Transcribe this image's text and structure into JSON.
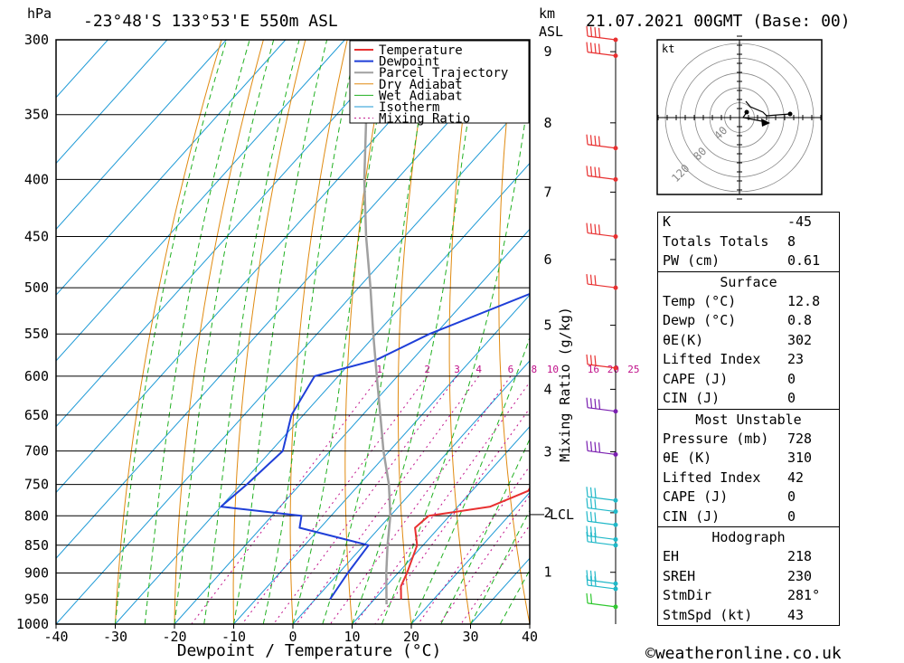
{
  "header": {
    "hpa_label": "hPa",
    "location": "-23°48'S  133°53'E  550m  ASL",
    "km_label": "km",
    "asl_label": "ASL",
    "datetime": "21.07.2021  00GMT  (Base: 00)"
  },
  "footer": {
    "x_axis_title": "Dewpoint / Temperature (°C)",
    "credit": "©weatheronline.co.uk"
  },
  "chart_data": {
    "type": "line",
    "title": "Skew-T log-P sounding",
    "xlabel": "Dewpoint / Temperature (°C)",
    "ylabel": "hPa",
    "y2label": "Mixing Ratio (g/kg)",
    "pressure_ticks": [
      "300",
      "350",
      "400",
      "450",
      "500",
      "550",
      "600",
      "650",
      "700",
      "750",
      "800",
      "850",
      "900",
      "950",
      "1000"
    ],
    "temp_ticks": [
      "-40",
      "-30",
      "-20",
      "-10",
      "0",
      "10",
      "20",
      "30",
      "40"
    ],
    "height_ticks": [
      "1",
      "2",
      "3",
      "4",
      "5",
      "6",
      "7",
      "8",
      "9"
    ],
    "lcl_label": "LCL",
    "mixing_ratio_labels": [
      "1",
      "2",
      "3",
      "4",
      "6",
      "8",
      "10",
      "16",
      "20",
      "25"
    ],
    "legend": [
      "Temperature",
      "Dewpoint",
      "Parcel Trajectory",
      "Dry Adiabat",
      "Wet Adiabat",
      "Isotherm",
      "Mixing Ratio"
    ],
    "colors": {
      "temperature": "#e83030",
      "dewpoint": "#1f3fd8",
      "parcel": "#a0a0a0",
      "dry_adiabat": "#e08a10",
      "wet_adiabat": "#20b020",
      "isotherm": "#1e9ad6",
      "mixing_ratio": "#c0108a"
    },
    "series": [
      {
        "name": "Temperature",
        "points": [
          [
            950,
            14.5
          ],
          [
            925,
            12.5
          ],
          [
            900,
            11.5
          ],
          [
            850,
            9.0
          ],
          [
            820,
            6.0
          ],
          [
            800,
            6.5
          ],
          [
            785,
            15.5
          ],
          [
            760,
            19.5
          ],
          [
            700,
            17.5
          ],
          [
            650,
            16.0
          ],
          [
            610,
            16.0
          ],
          [
            590,
            21.0
          ],
          [
            550,
            20.0
          ],
          [
            500,
            17.0
          ],
          [
            450,
            15.0
          ],
          [
            400,
            10.0
          ],
          [
            380,
            10.0
          ],
          [
            365,
            12.0
          ],
          [
            350,
            10.5
          ],
          [
            300,
            4.0
          ]
        ]
      },
      {
        "name": "Dewpoint",
        "points": [
          [
            950,
            2.5
          ],
          [
            900,
            1.5
          ],
          [
            850,
            0.8
          ],
          [
            820,
            -13.5
          ],
          [
            800,
            -15.0
          ],
          [
            785,
            -30.0
          ],
          [
            750,
            -29.0
          ],
          [
            700,
            -28.0
          ],
          [
            650,
            -32.0
          ],
          [
            600,
            -34.0
          ],
          [
            580,
            -26.0
          ],
          [
            550,
            -21.0
          ],
          [
            500,
            -8.5
          ],
          [
            480,
            -7.0
          ],
          [
            450,
            7.0
          ],
          [
            400,
            0.5
          ],
          [
            380,
            -1.0
          ],
          [
            370,
            -8.5
          ],
          [
            330,
            -10.5
          ],
          [
            300,
            -12.0
          ]
        ]
      },
      {
        "name": "Parcel Trajectory",
        "points": [
          [
            960,
            12.8
          ],
          [
            900,
            8.0
          ],
          [
            850,
            4.0
          ],
          [
            800,
            0.0
          ],
          [
            750,
            -5.0
          ],
          [
            700,
            -11.0
          ],
          [
            650,
            -17.0
          ],
          [
            600,
            -23.5
          ],
          [
            550,
            -30.5
          ],
          [
            500,
            -38.0
          ],
          [
            450,
            -46.5
          ],
          [
            400,
            -55.5
          ],
          [
            350,
            -65.0
          ],
          [
            310,
            -72.0
          ]
        ]
      }
    ]
  },
  "hodograph": {
    "unit_label": "kt",
    "rings": [
      "40",
      "80",
      "120"
    ]
  },
  "indices": {
    "top": [
      {
        "label": "K",
        "value": "-45"
      },
      {
        "label": "Totals Totals",
        "value": "8"
      },
      {
        "label": "PW (cm)",
        "value": "0.61"
      }
    ],
    "surface": {
      "title": "Surface",
      "rows": [
        {
          "label": "Temp (°C)",
          "value": "12.8"
        },
        {
          "label": "Dewp (°C)",
          "value": "0.8"
        },
        {
          "label": "θE(K)",
          "value": "302"
        },
        {
          "label": "Lifted Index",
          "value": "23"
        },
        {
          "label": "CAPE (J)",
          "value": "0"
        },
        {
          "label": "CIN (J)",
          "value": "0"
        }
      ]
    },
    "most_unstable": {
      "title": "Most Unstable",
      "rows": [
        {
          "label": "Pressure (mb)",
          "value": "728"
        },
        {
          "label": "θE (K)",
          "value": "310"
        },
        {
          "label": "Lifted Index",
          "value": "42"
        },
        {
          "label": "CAPE (J)",
          "value": "0"
        },
        {
          "label": "CIN (J)",
          "value": "0"
        }
      ]
    },
    "hodograph_table": {
      "title": "Hodograph",
      "rows": [
        {
          "label": "EH",
          "value": "218"
        },
        {
          "label": "SREH",
          "value": "230"
        },
        {
          "label": "StmDir",
          "value": "281°"
        },
        {
          "label": "StmSpd (kt)",
          "value": "43"
        }
      ]
    }
  }
}
